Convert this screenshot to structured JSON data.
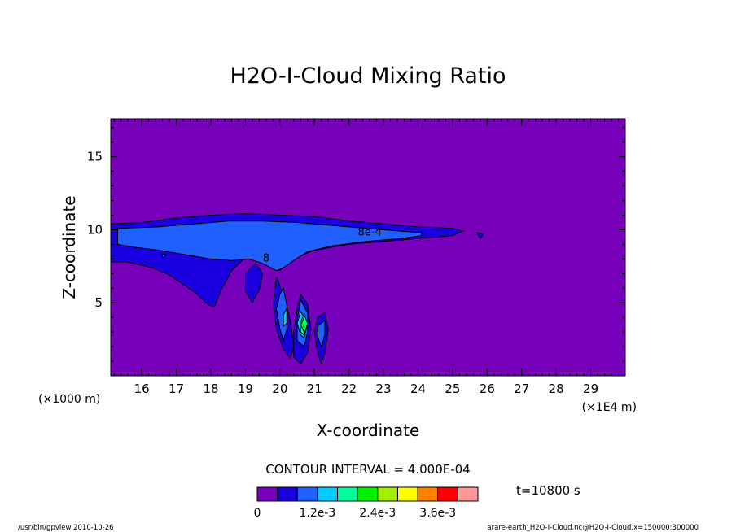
{
  "chart_data": {
    "type": "contour",
    "title": "H2O-I-Cloud Mixing Ratio",
    "xlabel": "X-coordinate",
    "ylabel": "Z-coordinate",
    "x_unit_left": "(×1000 m)",
    "x_unit_right": "(×1E4 m)",
    "xlim": [
      15.1,
      30.0
    ],
    "ylim": [
      0.0,
      17.6
    ],
    "x_ticks": [
      16,
      17,
      18,
      19,
      20,
      21,
      22,
      23,
      24,
      25,
      26,
      27,
      28,
      29
    ],
    "y_ticks": [
      5,
      10,
      15
    ],
    "contour_interval_text": "CONTOUR INTERVAL = 4.000E-04",
    "time_label": "t=10800 s",
    "contour_labels": [
      {
        "text": "8e-4",
        "x": 22.6,
        "y": 9.9
      },
      {
        "text": "8",
        "x": 19.6,
        "y": 8.1
      }
    ],
    "colorbar": {
      "colors": [
        "#7700bb",
        "#1a00e0",
        "#2060ff",
        "#00ccff",
        "#00ff9a",
        "#00f000",
        "#a0f000",
        "#ffff00",
        "#ff8000",
        "#ff0000",
        "#ff9999"
      ],
      "labels": [
        "0",
        "1.2e-3",
        "2.4e-3",
        "3.6e-3"
      ],
      "label_positions": [
        0,
        3,
        6,
        9
      ]
    },
    "regions": [
      {
        "level": 1,
        "points": [
          [
            15.1,
            10.4
          ],
          [
            16.0,
            10.5
          ],
          [
            17.0,
            10.8
          ],
          [
            18.0,
            11.0
          ],
          [
            19.0,
            11.1
          ],
          [
            20.0,
            11.0
          ],
          [
            21.0,
            10.9
          ],
          [
            22.0,
            10.6
          ],
          [
            23.0,
            10.4
          ],
          [
            24.0,
            10.2
          ],
          [
            25.0,
            10.1
          ],
          [
            25.3,
            9.9
          ],
          [
            25.0,
            9.6
          ],
          [
            24.0,
            9.4
          ],
          [
            23.0,
            9.2
          ],
          [
            22.0,
            9.0
          ],
          [
            21.0,
            8.6
          ],
          [
            20.3,
            8.0
          ],
          [
            20.0,
            7.2
          ],
          [
            19.6,
            7.6
          ],
          [
            19.3,
            8.3
          ],
          [
            19.0,
            8.1
          ],
          [
            18.6,
            7.2
          ],
          [
            18.3,
            5.9
          ],
          [
            18.1,
            4.7
          ],
          [
            17.9,
            4.9
          ],
          [
            17.6,
            5.6
          ],
          [
            17.3,
            6.1
          ],
          [
            16.8,
            6.9
          ],
          [
            16.3,
            7.4
          ],
          [
            15.6,
            7.8
          ],
          [
            15.1,
            7.8
          ]
        ]
      },
      {
        "level": 1,
        "points": [
          [
            19.9,
            6.8
          ],
          [
            20.1,
            5.5
          ],
          [
            20.3,
            3.8
          ],
          [
            20.4,
            2.0
          ],
          [
            20.3,
            1.2
          ],
          [
            20.1,
            1.8
          ],
          [
            19.9,
            3.2
          ],
          [
            19.8,
            4.9
          ]
        ]
      },
      {
        "level": 1,
        "points": [
          [
            20.6,
            5.6
          ],
          [
            20.8,
            4.9
          ],
          [
            20.9,
            3.2
          ],
          [
            20.8,
            1.6
          ],
          [
            20.6,
            0.8
          ],
          [
            20.4,
            1.3
          ],
          [
            20.4,
            3.0
          ],
          [
            20.5,
            4.6
          ]
        ]
      },
      {
        "level": 1,
        "points": [
          [
            21.3,
            4.3
          ],
          [
            21.4,
            3.2
          ],
          [
            21.3,
            1.6
          ],
          [
            21.2,
            0.8
          ],
          [
            21.1,
            1.5
          ],
          [
            21.0,
            3.0
          ],
          [
            21.1,
            4.0
          ]
        ]
      },
      {
        "level": 1,
        "points": [
          [
            19.3,
            7.7
          ],
          [
            19.5,
            7.0
          ],
          [
            19.4,
            5.9
          ],
          [
            19.2,
            5.0
          ],
          [
            19.0,
            5.8
          ],
          [
            19.0,
            7.0
          ]
        ]
      },
      {
        "level": 1,
        "points": [
          [
            25.7,
            9.8
          ],
          [
            25.9,
            9.7
          ],
          [
            25.8,
            9.4
          ]
        ]
      },
      {
        "level": 2,
        "points": [
          [
            15.3,
            10.1
          ],
          [
            16.5,
            10.2
          ],
          [
            17.5,
            10.4
          ],
          [
            18.5,
            10.6
          ],
          [
            19.5,
            10.6
          ],
          [
            20.5,
            10.5
          ],
          [
            21.5,
            10.3
          ],
          [
            22.5,
            10.1
          ],
          [
            23.5,
            9.9
          ],
          [
            24.1,
            9.8
          ],
          [
            24.1,
            9.6
          ],
          [
            23.5,
            9.4
          ],
          [
            22.5,
            9.2
          ],
          [
            21.5,
            8.9
          ],
          [
            20.8,
            8.5
          ],
          [
            20.4,
            7.9
          ],
          [
            20.1,
            7.4
          ],
          [
            19.9,
            7.2
          ],
          [
            19.5,
            7.7
          ],
          [
            19.1,
            8.0
          ],
          [
            18.6,
            7.9
          ],
          [
            18.0,
            8.0
          ],
          [
            17.5,
            8.2
          ],
          [
            16.5,
            8.6
          ],
          [
            15.8,
            8.8
          ],
          [
            15.3,
            9.0
          ]
        ]
      },
      {
        "level": 2,
        "points": [
          [
            20.1,
            6.0
          ],
          [
            20.2,
            4.8
          ],
          [
            20.2,
            3.2
          ],
          [
            20.1,
            2.4
          ],
          [
            20.0,
            3.2
          ],
          [
            19.9,
            4.6
          ],
          [
            20.0,
            5.6
          ]
        ]
      },
      {
        "level": 2,
        "points": [
          [
            20.6,
            5.2
          ],
          [
            20.8,
            4.3
          ],
          [
            20.8,
            3.0
          ],
          [
            20.7,
            2.0
          ],
          [
            20.5,
            2.4
          ],
          [
            20.5,
            3.8
          ]
        ]
      },
      {
        "level": 2,
        "points": [
          [
            21.3,
            3.8
          ],
          [
            21.3,
            2.8
          ],
          [
            21.2,
            2.0
          ],
          [
            21.1,
            2.6
          ],
          [
            21.1,
            3.4
          ]
        ]
      },
      {
        "level": 3,
        "points": [
          [
            20.6,
            4.4
          ],
          [
            20.8,
            3.6
          ],
          [
            20.7,
            2.6
          ],
          [
            20.6,
            2.8
          ],
          [
            20.5,
            3.6
          ]
        ]
      },
      {
        "level": 3,
        "points": [
          [
            20.2,
            4.6
          ],
          [
            20.2,
            3.6
          ],
          [
            20.1,
            3.4
          ],
          [
            20.1,
            4.2
          ]
        ]
      },
      {
        "level": 3,
        "points": [
          [
            16.6,
            8.3
          ],
          [
            16.7,
            8.3
          ],
          [
            16.6,
            8.1
          ]
        ]
      },
      {
        "level": 4,
        "points": [
          [
            20.7,
            4.2
          ],
          [
            20.8,
            3.6
          ],
          [
            20.7,
            2.8
          ],
          [
            20.6,
            3.0
          ],
          [
            20.6,
            3.7
          ]
        ]
      },
      {
        "level": 5,
        "points": [
          [
            20.7,
            4.0
          ],
          [
            20.7,
            3.5
          ],
          [
            20.7,
            3.0
          ],
          [
            20.6,
            3.5
          ]
        ]
      }
    ]
  },
  "footer": {
    "left": "/usr/bin/gpview   2010-10-26",
    "right": "arare-earth_H2O-I-Cloud.nc@H2O-I-Cloud,x=150000:300000"
  }
}
